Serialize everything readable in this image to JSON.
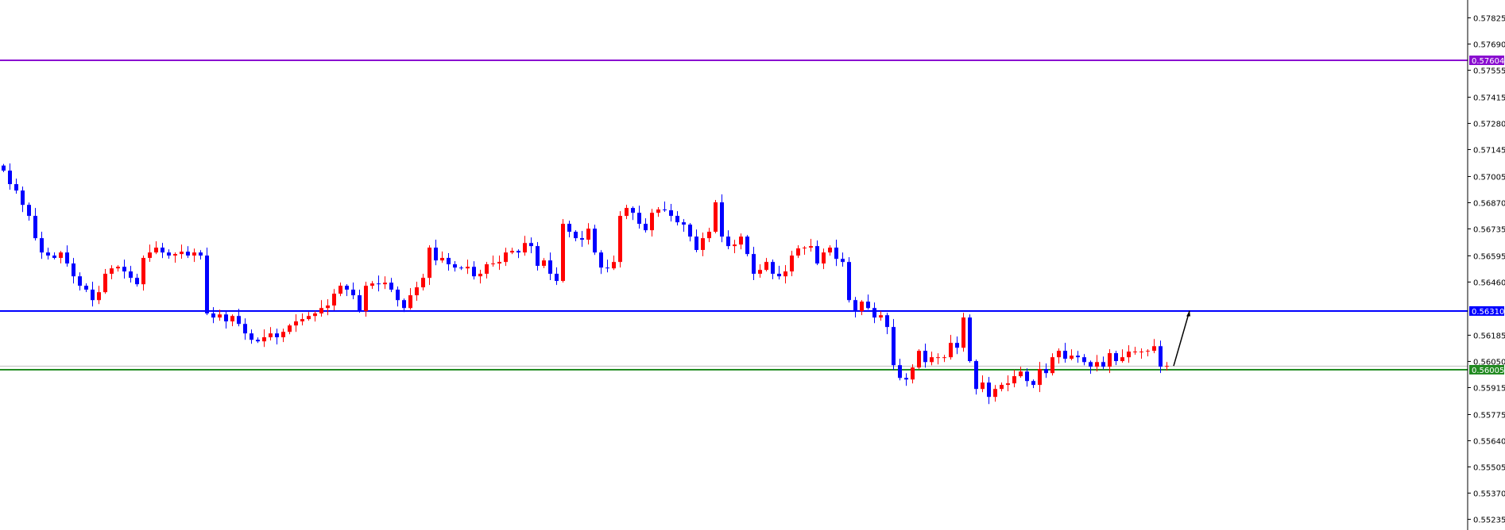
{
  "chart_data": {
    "type": "candlestick",
    "colors": {
      "bull": "#ff0000",
      "bear": "#0000ff",
      "background": "#ffffff",
      "axis": "#000000"
    },
    "y_axis": {
      "position": "right",
      "range": [
        0.55235,
        0.57825
      ],
      "ticks": [
        "0.57825",
        "0.57690",
        "0.57555",
        "0.57415",
        "0.57280",
        "0.57145",
        "0.57005",
        "0.56870",
        "0.56735",
        "0.56595",
        "0.56460",
        "0.56185",
        "0.56050",
        "0.55915",
        "0.55775",
        "0.55640",
        "0.55505",
        "0.55370",
        "0.55235"
      ]
    },
    "first_open": 0.5706,
    "close": [
      0.57034,
      0.56964,
      0.56931,
      0.56857,
      0.568,
      0.56685,
      0.56611,
      0.56595,
      0.56583,
      0.56611,
      0.56554,
      0.56488,
      0.56439,
      0.56419,
      0.56365,
      0.56406,
      0.56501,
      0.56529,
      0.56537,
      0.56513,
      0.5648,
      0.56447,
      0.56583,
      0.56611,
      0.56636,
      0.56611,
      0.56595,
      0.56603,
      0.56615,
      0.56595,
      0.56611,
      0.56595,
      0.56296,
      0.56275,
      0.56291,
      0.56255,
      0.56283,
      0.56242,
      0.56193,
      0.5616,
      0.56152,
      0.56173,
      0.56193,
      0.56173,
      0.56201,
      0.56234,
      0.56255,
      0.56267,
      0.56283,
      0.56296,
      0.56324,
      0.56337,
      0.56398,
      0.56439,
      0.56419,
      0.5639,
      0.56308,
      0.56439,
      0.56451,
      0.56447,
      0.56455,
      0.56419,
      0.56365,
      0.56324,
      0.5639,
      0.56431,
      0.5648,
      0.56636,
      0.5657,
      0.56583,
      0.5655,
      0.56533,
      0.56529,
      0.56537,
      0.56488,
      0.56501,
      0.5655,
      0.56554,
      0.56562,
      0.56611,
      0.56619,
      0.56611,
      0.5666,
      0.56644,
      0.56542,
      0.5657,
      0.56501,
      0.56464,
      0.56759,
      0.56718,
      0.56685,
      0.56677,
      0.56734,
      0.56611,
      0.56533,
      0.56529,
      0.56562,
      0.568,
      0.56841,
      0.56816,
      0.56759,
      0.56726,
      0.56816,
      0.56833,
      0.56829,
      0.568,
      0.56767,
      0.56755,
      0.56693,
      0.56624,
      0.56685,
      0.56718,
      0.5687,
      0.56693,
      0.56644,
      0.56652,
      0.56693,
      0.56603,
      0.56501,
      0.56521,
      0.56562,
      0.56501,
      0.56488,
      0.56513,
      0.56595,
      0.56632,
      0.56636,
      0.56644,
      0.56554,
      0.56611,
      0.56636,
      0.56578,
      0.56562,
      0.56365,
      0.56308,
      0.56357,
      0.56324,
      0.56275,
      0.56287,
      0.56226,
      0.56029,
      0.55963,
      0.55955,
      0.56017,
      0.56103,
      0.56045,
      0.5607,
      0.5607,
      0.5607,
      0.56144,
      0.56119,
      0.56275,
      0.5605,
      0.55906,
      0.55939,
      0.55865,
      0.55906,
      0.55927,
      0.55935,
      0.55972,
      0.55996,
      0.55947,
      0.55927,
      0.56009,
      0.55988,
      0.5607,
      0.56103,
      0.56062,
      0.56078,
      0.5607,
      0.56045,
      0.56021,
      0.56045,
      0.56021,
      0.56091,
      0.5605,
      0.5607,
      0.56099,
      0.56099,
      0.56099,
      0.56103,
      0.56127,
      0.56021,
      0.56025
    ],
    "horizontal_lines": [
      {
        "label": "0.57604",
        "price": 0.57604,
        "color": "#8a0fd0"
      },
      {
        "label": "0.56310",
        "price": 0.5631,
        "color": "#0000ff"
      },
      {
        "label": "0.56005",
        "price": 0.56005,
        "color": "#228b22"
      }
    ],
    "current_price_line": {
      "price": 0.56025,
      "color": "#c0c0c0"
    },
    "projection_arrow": {
      "from_price": 0.56025,
      "to_price": 0.5631,
      "color": "#000000"
    }
  }
}
